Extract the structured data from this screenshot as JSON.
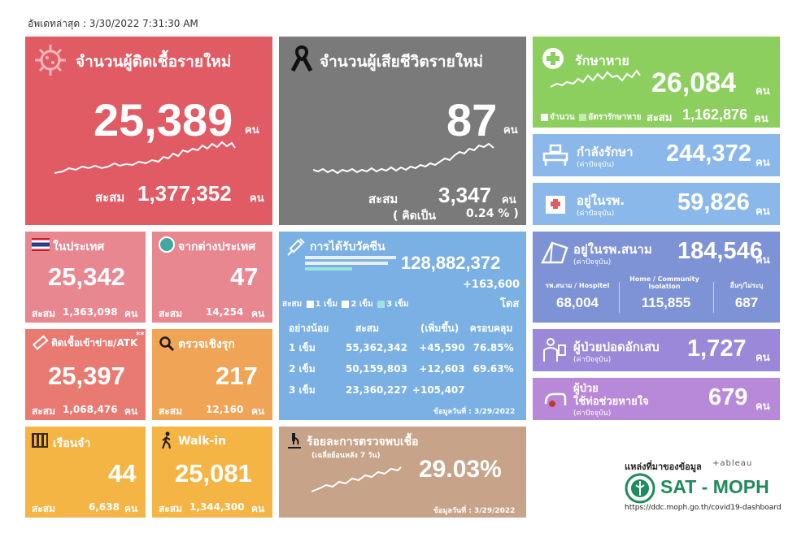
{
  "updated": "อัพเดทล่าสุด : 3/30/2022 7:31:30 AM",
  "unit": "คน",
  "cum_label": "สะสม",
  "new_cases": {
    "title": "จำนวนผู้ติดเชื้อรายใหม่",
    "value": "25,389",
    "cumulative": "1,377,352"
  },
  "deaths": {
    "title": "จำนวนผู้เสียชีวิตรายใหม่",
    "value": "87",
    "cumulative": "3,347",
    "rate_label": "( คิดเป็น",
    "rate": "0.24 % )"
  },
  "recovered": {
    "title": "รักษาหาย",
    "value": "26,084",
    "cumulative": "1,162,876",
    "legend_count": "จำนวน",
    "legend_rate": "อัตรารักษาหาย"
  },
  "in_treatment": {
    "title": "กำลังรักษา",
    "sub": "(ค่าปัจจุบัน)",
    "value": "244,372"
  },
  "in_hospital": {
    "title": "อยู่ในรพ.",
    "sub": "(ค่าปัจจุบัน)",
    "value": "59,826"
  },
  "field_hospital": {
    "title": "อยู่ในรพ.สนาม",
    "sub": "(ค่าปัจจุบัน)",
    "value": "184,546",
    "cols": [
      {
        "label": "รพ.สนาม / Hospitel",
        "value": "68,004"
      },
      {
        "label": "Home / Community Isolation",
        "value": "115,855"
      },
      {
        "label": "อื่นๆ/ไม่ระบุ",
        "value": "687"
      }
    ]
  },
  "pneumonia": {
    "title": "ผู้ป่วยปอดอักเสบ",
    "sub": "(ค่าปัจจุบัน)",
    "value": "1,727"
  },
  "ventilator": {
    "title1": "ผู้ป่วย",
    "title2": "ใช้ท่อช่วยหายใจ",
    "sub": "(ค่าปัจจุบัน)",
    "value": "679"
  },
  "domestic": {
    "title": "ในประเทศ",
    "value": "25,342",
    "cumulative": "1,363,098"
  },
  "abroad": {
    "title": "จากต่างประเทศ",
    "value": "47",
    "cumulative": "14,254"
  },
  "atk": {
    "title": "ติดเชื้อเข้าข่าย/ATK",
    "star": "**",
    "value": "25,397",
    "cumulative": "1,068,476"
  },
  "active_search": {
    "title": "ตรวจเชิงรุก",
    "value": "217",
    "cumulative": "12,160"
  },
  "prison": {
    "title": "เรือนจำ",
    "value": "44",
    "cumulative": "6,638"
  },
  "walkin": {
    "title": "Walk-in",
    "value": "25,081",
    "cumulative": "1,344,300"
  },
  "vaccine": {
    "title": "การได้รับวัคซีน",
    "total": "128,882,372",
    "increase": "+163,600",
    "dose_unit": "โดส",
    "legend_label": "สะสม",
    "legend": [
      "1 เข็ม",
      "2 เข็ม",
      "3 เข็ม"
    ],
    "headers": [
      "อย่างน้อย",
      "สะสม",
      "(เพิ่มขึ้น)",
      "ครอบคลุม"
    ],
    "rows": [
      {
        "dose": "1 เข็ม",
        "cum": "55,362,342",
        "inc": "+45,590",
        "cov": "76.85%"
      },
      {
        "dose": "2 เข็ม",
        "cum": "50,159,803",
        "inc": "+12,603",
        "cov": "69.63%"
      },
      {
        "dose": "3 เข็ม",
        "cum": "23,360,227",
        "inc": "+105,407",
        "cov": ""
      }
    ],
    "date": "ข้อมูลวันที่ : 3/29/2022"
  },
  "positivity": {
    "title": "ร้อยละการตรวจพบเชื้อ",
    "sub": "(เฉลี่ยย้อนหลัง 7 วัน)",
    "value": "29.03%",
    "date": "ข้อมูลวันที่ : 3/29/2022"
  },
  "source": {
    "label": "แหล่งที่มาของข้อมูล",
    "tableau": "+ableau",
    "org": "SAT - MOPH",
    "url": "https://ddc.moph.go.th/covid19-dashboard"
  },
  "colors": {
    "cases": "#e15b64",
    "deaths": "#7a7a7a",
    "recovered": "#8ccf5e",
    "vaccine": "#7ab0e3"
  }
}
